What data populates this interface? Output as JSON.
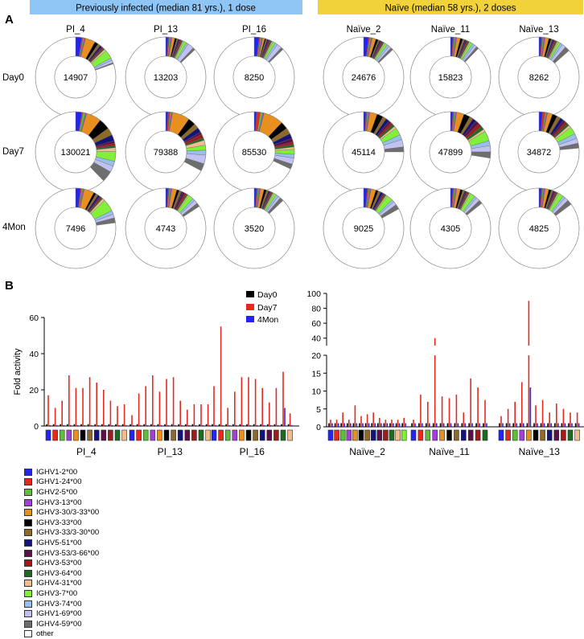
{
  "panel_labels": {
    "a": "A",
    "b": "B"
  },
  "group_headers": [
    {
      "text": "Previously infected (median 81 yrs.), 1 dose",
      "color": "#8ec5f5"
    },
    {
      "text": "Naïve (median 58 yrs.), 2 doses",
      "color": "#f2d23a"
    }
  ],
  "genes": [
    {
      "name": "IGHV1-2*00",
      "color": "#2424f0"
    },
    {
      "name": "IGHV1-24*00",
      "color": "#e42a1e"
    },
    {
      "name": "IGHV2-5*00",
      "color": "#5fbf3a"
    },
    {
      "name": "IGHV3-13*00",
      "color": "#a040d8"
    },
    {
      "name": "IGHV3-30/3-33*00",
      "color": "#e8901f"
    },
    {
      "name": "IGHV3-33*00",
      "color": "#000000"
    },
    {
      "name": "IGHV3-33/3-30*00",
      "color": "#8e6a2a"
    },
    {
      "name": "IGHV5-51*00",
      "color": "#141478"
    },
    {
      "name": "IGHV3-53/3-66*00",
      "color": "#5c1048"
    },
    {
      "name": "IGHV3-53*00",
      "color": "#9e1c1c"
    },
    {
      "name": "IGHV3-64*00",
      "color": "#1f6a22"
    },
    {
      "name": "IGHV4-31*00",
      "color": "#f0bc90"
    },
    {
      "name": "IGHV3-7*00",
      "color": "#82f03a"
    },
    {
      "name": "IGHV3-74*00",
      "color": "#98c0ea"
    },
    {
      "name": "IGHV1-69*00",
      "color": "#c2c2f2"
    },
    {
      "name": "IGHV4-59*00",
      "color": "#6e6e6e"
    },
    {
      "name": "other",
      "color": "#ffffff"
    }
  ],
  "chart_data": [
    {
      "type": "pie",
      "subtype": "donut",
      "columns": [
        "PI_4",
        "PI_13",
        "PI_16",
        "Naïve_2",
        "Naïve_11",
        "Naïve_13"
      ],
      "rows": [
        "Day0",
        "Day7",
        "4Mon"
      ],
      "center_values": [
        [
          14907,
          13203,
          8250,
          24676,
          15823,
          8262
        ],
        [
          130021,
          79388,
          85530,
          45114,
          47899,
          34872
        ],
        [
          7496,
          4743,
          3520,
          9025,
          4305,
          4825
        ]
      ],
      "fraction_units": "percent of clonotypes per IGHV gene (remainder = other)",
      "fractions": [
        [
          [
            2.5,
            0.5,
            0.5,
            0.5,
            4,
            1.5,
            1,
            0.8,
            0.5,
            0.5,
            0.5,
            0.8,
            3.5,
            1,
            1,
            0.5
          ],
          [
            1,
            0.5,
            0.5,
            0.5,
            1.2,
            0.8,
            0.5,
            0.5,
            0.5,
            0.5,
            0.5,
            0.5,
            1.2,
            0.8,
            2.5,
            1
          ],
          [
            2,
            0.5,
            0.5,
            0.5,
            0.8,
            0.5,
            0.5,
            0.5,
            0.5,
            0.5,
            0.5,
            0.5,
            1,
            1,
            2,
            1
          ],
          [
            2,
            0.5,
            0.5,
            0.5,
            1.5,
            1,
            0.5,
            0.5,
            0.5,
            0.5,
            0.5,
            0.5,
            1,
            1,
            1,
            1
          ],
          [
            1,
            0.5,
            0.5,
            0.5,
            1.5,
            1,
            0.8,
            0.5,
            0.5,
            0.5,
            0.5,
            0.5,
            1,
            1,
            1,
            1
          ],
          [
            1,
            0.5,
            0.5,
            0.5,
            1.5,
            1,
            0.5,
            0.5,
            0.5,
            0.5,
            0.5,
            0.5,
            1,
            1,
            1.5,
            2
          ]
        ],
        [
          [
            2.5,
            0.5,
            1,
            0.5,
            6,
            4.5,
            3,
            2.5,
            1,
            1,
            0.8,
            1.5,
            4,
            2,
            2.5,
            4.5
          ],
          [
            1,
            0.8,
            0.5,
            0.5,
            7,
            3,
            2,
            2,
            1,
            1.5,
            1,
            2,
            2,
            2,
            3.5,
            3
          ],
          [
            1,
            1.5,
            1,
            0.5,
            8,
            3,
            2.5,
            2,
            1.5,
            1,
            1,
            1,
            2,
            1.5,
            2.5,
            2
          ],
          [
            1,
            0.5,
            0.5,
            0.5,
            3,
            2.5,
            1.5,
            1.5,
            1,
            1,
            1,
            1,
            3,
            2,
            3,
            2
          ],
          [
            1,
            0.5,
            0.5,
            0.5,
            3,
            2.5,
            1.5,
            1.5,
            1.5,
            1.5,
            1.5,
            1,
            4,
            2,
            2.5,
            2.5
          ],
          [
            1.5,
            1,
            0.5,
            0.5,
            2,
            2,
            1.5,
            1.5,
            1,
            1,
            1,
            1,
            3,
            2,
            2,
            2
          ]
        ],
        [
          [
            2,
            0.5,
            0.5,
            0.5,
            4,
            1,
            1,
            0.8,
            0.5,
            0.5,
            0.5,
            1,
            5,
            1.5,
            1.5,
            2
          ],
          [
            1,
            0.5,
            0.5,
            0.5,
            2,
            1,
            1,
            0.5,
            1,
            0.8,
            0.5,
            0.5,
            2,
            1,
            1.5,
            1.5
          ],
          [
            1,
            0.5,
            0.5,
            0.5,
            1.5,
            1,
            0.8,
            0.5,
            0.5,
            0.5,
            0.5,
            0.5,
            1,
            1,
            1,
            1.5
          ],
          [
            1.5,
            0.5,
            0.5,
            0.5,
            2,
            1,
            1,
            1,
            0.5,
            0.5,
            0.5,
            0.5,
            2.5,
            1,
            1.5,
            2
          ],
          [
            1,
            0.5,
            0.5,
            0.5,
            1.5,
            1,
            0.8,
            0.5,
            0.5,
            0.5,
            0.5,
            0.5,
            2,
            1,
            1.5,
            1.5
          ],
          [
            1,
            0.5,
            0.5,
            0.5,
            1.5,
            1,
            0.8,
            0.5,
            0.5,
            0.5,
            0.5,
            0.5,
            2,
            1,
            1.5,
            2
          ]
        ]
      ]
    },
    {
      "type": "bar",
      "ylabel": "Fold activity",
      "ylim": [
        0,
        60
      ],
      "yticks": [
        0,
        20,
        40,
        60
      ],
      "legend": [
        "Day0",
        "Day7",
        "4Mon"
      ],
      "legend_placement": "top-right",
      "series_colors": [
        "#000000",
        "#e42a1e",
        "#2424f0"
      ],
      "categories": [
        "PI_4",
        "PI_13",
        "PI_16"
      ],
      "values_day7": [
        [
          17,
          10,
          14,
          28,
          21,
          21,
          27,
          24,
          20,
          14,
          11,
          12
        ],
        [
          6,
          18,
          22,
          28,
          19,
          26,
          27,
          14,
          9,
          12,
          12,
          12
        ],
        [
          22,
          55,
          10,
          19,
          27,
          27,
          26,
          21,
          13,
          21,
          30,
          7
        ]
      ],
      "values_4mon": [
        [
          0.5,
          0.5,
          0.5,
          0.5,
          0.5,
          0.5,
          0.5,
          0.5,
          0.5,
          0.5,
          0.5,
          0.5
        ],
        [
          0.5,
          0.5,
          0.5,
          0.5,
          0.5,
          0.5,
          0.5,
          0.5,
          0.5,
          0.5,
          0.5,
          0.5
        ],
        [
          0.5,
          0.5,
          0.5,
          0.5,
          0.5,
          0.5,
          0.5,
          0.5,
          0.5,
          0.5,
          10,
          0.5
        ]
      ],
      "values_day0": 1
    },
    {
      "type": "bar",
      "ylabel": "",
      "y_axis_broken": true,
      "yticks_lower": [
        0,
        5,
        10,
        15,
        20
      ],
      "yticks_upper": [
        40,
        60,
        80,
        100
      ],
      "categories": [
        "Naïve_2",
        "Naïve_11",
        "Naïve_13"
      ],
      "values_day7": [
        [
          2,
          2,
          4,
          2,
          6,
          3,
          3.5,
          4,
          2.5,
          2,
          2,
          2,
          2.5
        ],
        [
          2,
          9,
          7,
          40,
          8.5,
          8,
          9,
          4,
          13.5,
          11,
          7.5
        ],
        [
          3,
          5,
          7,
          12.5,
          90,
          6,
          7.5,
          4,
          6.5,
          5,
          4,
          4
        ]
      ],
      "values_4mon": [
        [
          1,
          1,
          1,
          1,
          1,
          1,
          1,
          1,
          1,
          1,
          1,
          1,
          1
        ],
        [
          1,
          1,
          1,
          1,
          1,
          1,
          1,
          1,
          1,
          1,
          1
        ],
        [
          1,
          1,
          1,
          1,
          11,
          1,
          1,
          1,
          1,
          1,
          1,
          1
        ]
      ],
      "values_day0": 1
    }
  ]
}
